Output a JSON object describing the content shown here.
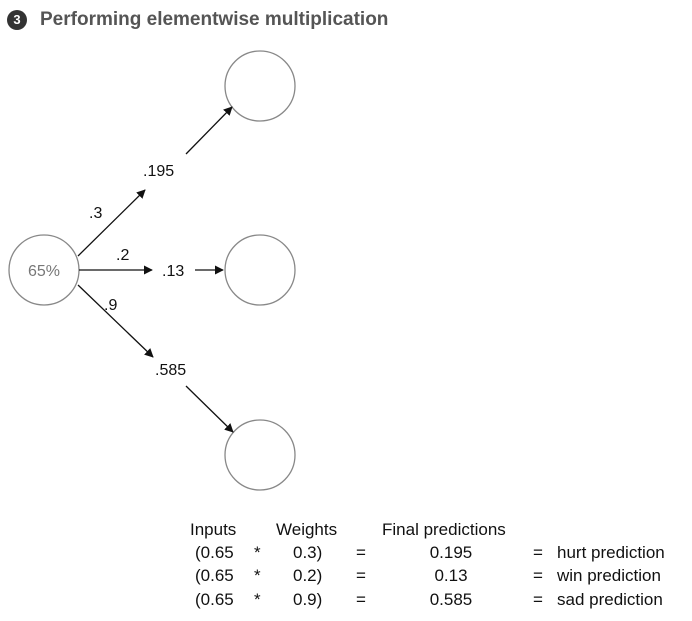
{
  "header": {
    "step": "3",
    "title": "Performing elementwise multiplication"
  },
  "diagram": {
    "input_node": "65%",
    "weights": [
      ".3",
      ".2",
      ".9"
    ],
    "products": [
      ".195",
      ".13",
      ".585"
    ]
  },
  "table": {
    "headers": {
      "inputs": "Inputs",
      "weights": "Weights",
      "final": "Final predictions"
    },
    "rows": [
      {
        "input": "(0.65",
        "op": "*",
        "weight": "0.3)",
        "eq": "=",
        "result": "0.195",
        "eq2": "=",
        "label": "hurt prediction"
      },
      {
        "input": "(0.65",
        "op": "*",
        "weight": "0.2)",
        "eq": "=",
        "result": "0.13",
        "eq2": "=",
        "label": "win prediction"
      },
      {
        "input": "(0.65",
        "op": "*",
        "weight": "0.9)",
        "eq": "=",
        "result": "0.585",
        "eq2": "=",
        "label": "sad prediction"
      }
    ]
  }
}
